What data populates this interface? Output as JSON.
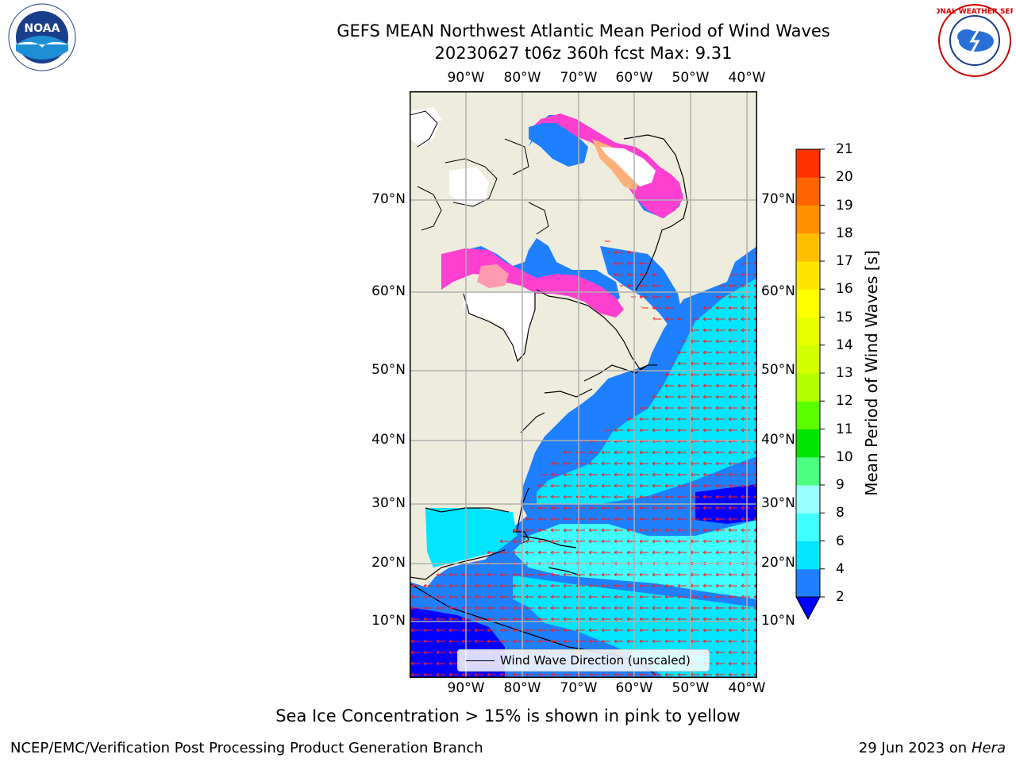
{
  "header": {
    "title_line1": "GEFS MEAN Northwest Atlantic Mean Period of Wind Waves",
    "title_line2": "20230627 t06z 360h fcst   Max: 9.31"
  },
  "logos": {
    "left": {
      "name": "noaa-logo",
      "text": "NOAA"
    },
    "right": {
      "name": "nws-logo",
      "text": "NATIONAL WEATHER SERVICE"
    }
  },
  "map": {
    "lon_labels": [
      "90°W",
      "80°W",
      "70°W",
      "60°W",
      "50°W",
      "40°W"
    ],
    "lat_labels": [
      "70°N",
      "60°N",
      "50°N",
      "40°N",
      "30°N",
      "20°N",
      "10°N"
    ],
    "legend_label": "Wind Wave Direction (unscaled)"
  },
  "colorbar": {
    "label": "Mean Period of Wind Waves [s]",
    "ticks": [
      "2",
      "4",
      "6",
      "8",
      "9",
      "10",
      "11",
      "12",
      "13",
      "14",
      "15",
      "16",
      "17",
      "18",
      "19",
      "20",
      "21"
    ],
    "colors": [
      "#1E7FFF",
      "#00E6FF",
      "#40FFFF",
      "#9AFFFF",
      "#4CFF80",
      "#00E600",
      "#5AFF00",
      "#B4FF00",
      "#D4FF00",
      "#E8FF00",
      "#FFFF00",
      "#FFE600",
      "#FFBE00",
      "#FF9100",
      "#FF6400",
      "#FF3200",
      "#FF0000"
    ],
    "under_color": "#0000FF"
  },
  "note": "Sea Ice Concentration > 15% is shown in pink to yellow",
  "footer": {
    "left": "NCEP/EMC/Verification Post Processing Product Generation Branch",
    "date": "29 Jun 2023 on",
    "host": "Hera"
  }
}
